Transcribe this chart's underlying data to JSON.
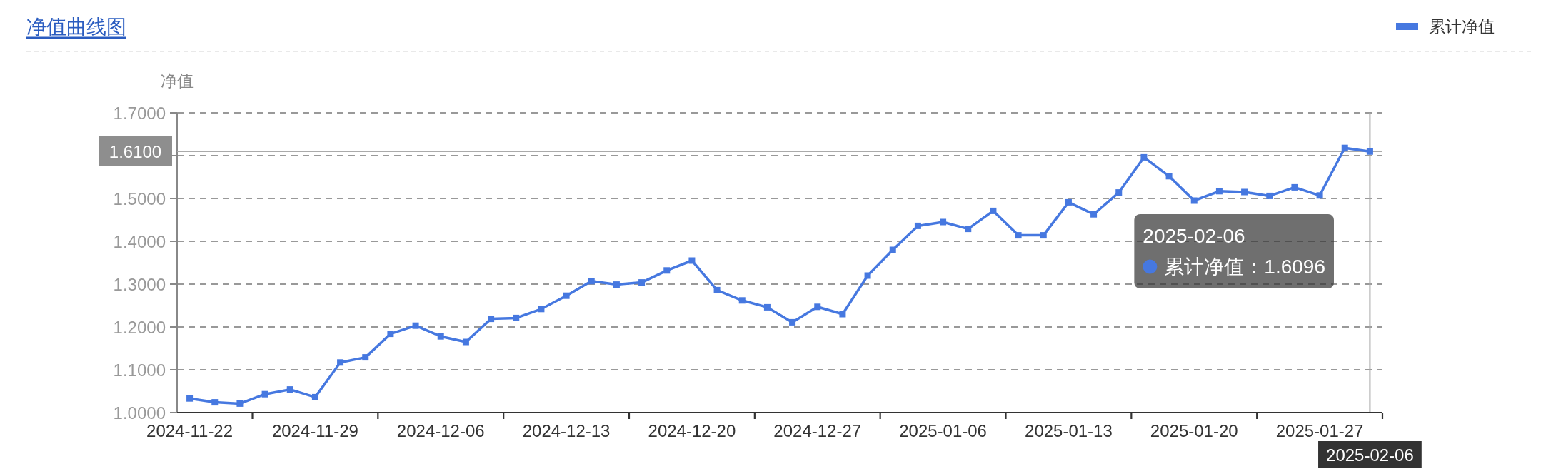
{
  "chart_data": {
    "type": "line",
    "title": "净值曲线图",
    "ylabel": "净值",
    "categories": [
      "2024-11-22",
      null,
      null,
      null,
      null,
      "2024-11-29",
      null,
      null,
      null,
      null,
      "2024-12-06",
      null,
      null,
      null,
      null,
      "2024-12-13",
      null,
      null,
      null,
      null,
      "2024-12-20",
      null,
      null,
      null,
      null,
      "2024-12-27",
      null,
      null,
      null,
      null,
      "2025-01-06",
      null,
      null,
      null,
      null,
      "2025-01-13",
      null,
      null,
      null,
      null,
      "2025-01-20",
      null,
      null,
      null,
      null,
      "2025-01-27",
      null,
      "2025-02-06"
    ],
    "series": [
      {
        "name": "累计净值",
        "color": "#4678e0",
        "values": [
          1.033,
          1.024,
          1.021,
          1.043,
          1.054,
          1.036,
          1.117,
          1.129,
          1.184,
          1.203,
          1.178,
          1.165,
          1.219,
          1.221,
          1.242,
          1.273,
          1.307,
          1.299,
          1.304,
          1.332,
          1.355,
          1.286,
          1.262,
          1.246,
          1.211,
          1.247,
          1.23,
          1.32,
          1.38,
          1.436,
          1.445,
          1.429,
          1.471,
          1.414,
          1.414,
          1.491,
          1.463,
          1.514,
          1.596,
          1.552,
          1.495,
          1.517,
          1.515,
          1.506,
          1.526,
          1.507,
          1.618,
          1.6096
        ]
      }
    ],
    "ylim": [
      1.0,
      1.7
    ],
    "yticks": [
      {
        "value": 1.0,
        "label": "1.0000"
      },
      {
        "value": 1.1,
        "label": "1.1000"
      },
      {
        "value": 1.2,
        "label": "1.2000"
      },
      {
        "value": 1.3,
        "label": "1.3000"
      },
      {
        "value": 1.4,
        "label": "1.4000"
      },
      {
        "value": 1.5,
        "label": "1.5000"
      },
      {
        "value": 1.6,
        "label": null
      },
      {
        "value": 1.7,
        "label": "1.7000"
      }
    ],
    "grid": "y",
    "legend": "top right",
    "marker": "square",
    "line_style": "solid",
    "ref_lines": [
      {
        "axis": "y",
        "value": 1.61,
        "label": "1.6100",
        "color": "#aaaaaa"
      },
      {
        "axis": "x",
        "value": "2025-02-06",
        "color": "#aaaaaa"
      }
    ],
    "annotations": [
      "2025-02-06\n累计净值：1.6096"
    ]
  }
}
